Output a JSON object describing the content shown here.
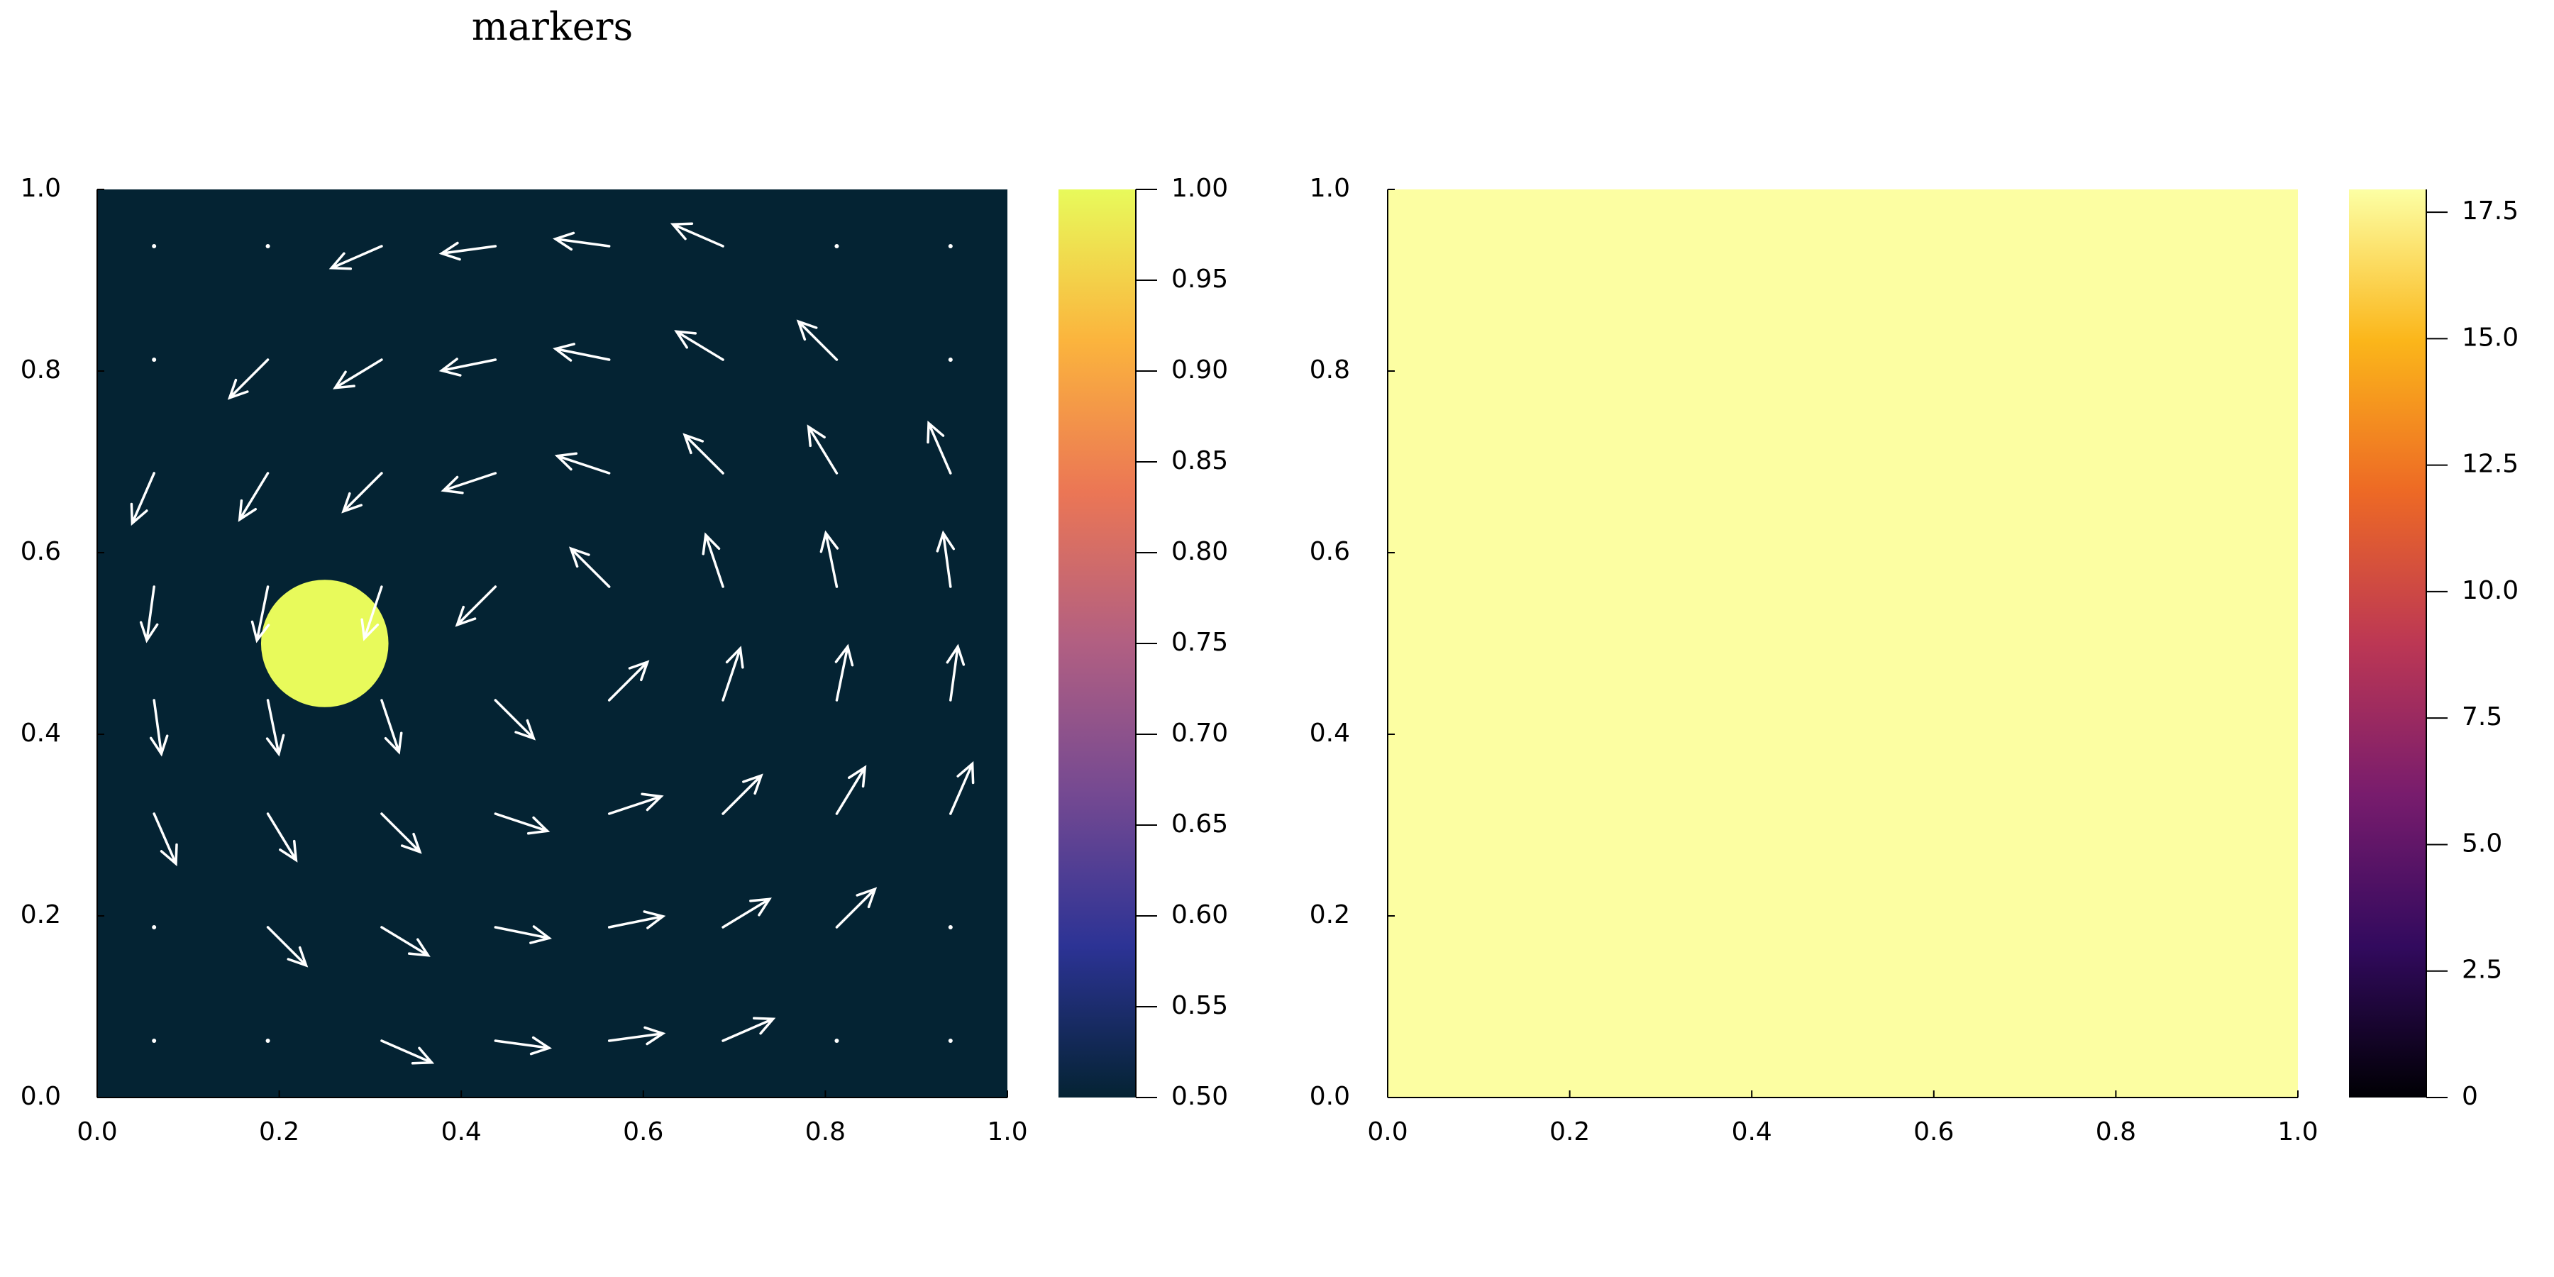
{
  "chart_data": [
    {
      "type": "heatmap",
      "title": "markers",
      "xlim": [
        0,
        1
      ],
      "ylim": [
        0,
        1
      ],
      "xticks": [
        {
          "value": 0,
          "label": "0.0"
        },
        0.2,
        0.4,
        0.6,
        0.8,
        {
          "value": 1,
          "label": "1.0"
        }
      ],
      "yticks": [
        {
          "value": 0,
          "label": "0.0"
        },
        0.2,
        0.4,
        0.6,
        0.8,
        {
          "value": 1,
          "label": "1.0"
        }
      ],
      "colorscale": [
        "#042333",
        "#2c3395",
        "#744992",
        "#b15f82",
        "#eb7655",
        "#fbb43d",
        "#e8fa5b"
      ],
      "clim": [
        0.5,
        1.0
      ],
      "cticks": [
        {
          "value": 0.5,
          "label": "0.50"
        },
        {
          "value": 0.55,
          "label": "0.55"
        },
        {
          "value": 0.6,
          "label": "0.60"
        },
        {
          "value": 0.65,
          "label": "0.65"
        },
        {
          "value": 0.7,
          "label": "0.70"
        },
        {
          "value": 0.75,
          "label": "0.75"
        },
        {
          "value": 0.8,
          "label": "0.80"
        },
        {
          "value": 0.85,
          "label": "0.85"
        },
        {
          "value": 0.9,
          "label": "0.90"
        },
        {
          "value": 0.95,
          "label": "0.95"
        },
        {
          "value": 1.0,
          "label": "1.00"
        }
      ],
      "background": 0.5,
      "disk": {
        "x": 0.25,
        "y": 0.5,
        "r": 0.07,
        "value": 1.0
      },
      "quiver": {
        "color": "#ffffff",
        "x": [
          0.0625,
          0.1875,
          0.3125,
          0.4375,
          0.5625,
          0.6875,
          0.8125,
          0.9375
        ],
        "y": [
          0.0625,
          0.1875,
          0.3125,
          0.4375,
          0.5625,
          0.6875,
          0.8125,
          0.9375
        ],
        "u": [
          [
            0,
            0,
            0.055,
            0.059,
            0.059,
            0.055,
            0,
            0
          ],
          [
            0,
            0.042,
            0.051,
            0.059,
            0.059,
            0.051,
            0.042,
            0
          ],
          [
            0.024,
            0.031,
            0.042,
            0.057,
            0.057,
            0.042,
            0.031,
            0.024
          ],
          [
            0.008,
            0.012,
            0.019,
            0.042,
            0.042,
            0.019,
            0.012,
            0.008
          ],
          [
            -0.008,
            -0.012,
            -0.019,
            -0.042,
            -0.042,
            -0.019,
            -0.012,
            -0.008
          ],
          [
            -0.024,
            -0.031,
            -0.042,
            -0.057,
            -0.057,
            -0.042,
            -0.031,
            -0.024
          ],
          [
            0,
            -0.042,
            -0.051,
            -0.059,
            -0.059,
            -0.051,
            -0.042,
            0
          ],
          [
            0,
            0,
            -0.055,
            -0.059,
            -0.059,
            -0.055,
            0,
            0
          ]
        ],
        "v": [
          [
            0,
            0,
            -0.024,
            -0.008,
            0.008,
            0.024,
            0,
            0
          ],
          [
            0,
            -0.042,
            -0.031,
            -0.012,
            0.012,
            0.031,
            0.042,
            0
          ],
          [
            -0.055,
            -0.051,
            -0.042,
            -0.019,
            0.019,
            0.042,
            0.051,
            0.055
          ],
          [
            -0.059,
            -0.059,
            -0.057,
            -0.042,
            0.042,
            0.057,
            0.059,
            0.059
          ],
          [
            -0.059,
            -0.059,
            -0.057,
            -0.042,
            0.042,
            0.057,
            0.059,
            0.059
          ],
          [
            -0.055,
            -0.051,
            -0.042,
            -0.019,
            0.019,
            0.042,
            0.051,
            0.055
          ],
          [
            0,
            -0.042,
            -0.031,
            -0.012,
            0.012,
            0.031,
            0.042,
            0
          ],
          [
            0,
            0,
            -0.024,
            -0.008,
            0.008,
            0.024,
            0,
            0
          ]
        ]
      }
    },
    {
      "type": "heatmap",
      "xlim": [
        0,
        1
      ],
      "ylim": [
        0,
        1
      ],
      "xticks": [
        {
          "value": 0,
          "label": "0.0"
        },
        0.2,
        0.4,
        0.6,
        0.8,
        {
          "value": 1,
          "label": "1.0"
        }
      ],
      "yticks": [
        {
          "value": 0,
          "label": "0.0"
        },
        0.2,
        0.4,
        0.6,
        0.8,
        {
          "value": 1,
          "label": "1.0"
        }
      ],
      "colorscale": [
        "#000004",
        "#320a5e",
        "#781c6d",
        "#bc3754",
        "#ed6925",
        "#fbb61a",
        "#fcffa4"
      ],
      "clim": [
        0,
        17.95
      ],
      "cticks": [
        0,
        2.5,
        {
          "value": 5,
          "label": "5.0"
        },
        7.5,
        {
          "value": 10,
          "label": "10.0"
        },
        12.5,
        {
          "value": 15,
          "label": "15.0"
        },
        17.5
      ],
      "background": 17.9
    }
  ]
}
